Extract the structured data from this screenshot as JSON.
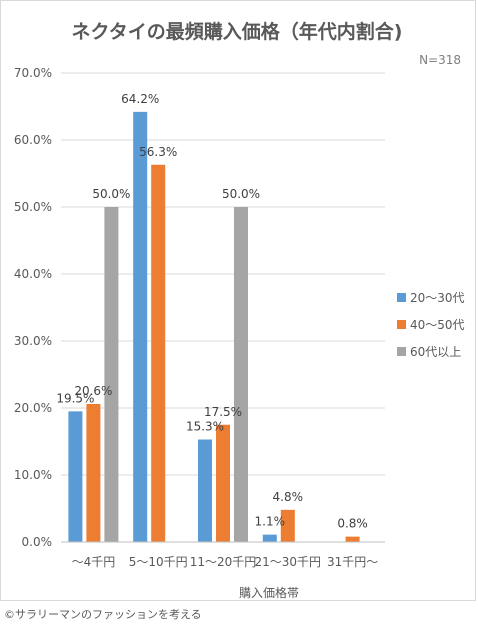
{
  "chart_data": {
    "type": "bar",
    "title": "ネクタイの最頻購入価格（年代内割合)",
    "note": "N=318",
    "xlabel": "購入価格帯",
    "ylabel": "",
    "categories": [
      "～4千円",
      "5～10千円",
      "11～20千円",
      "21～30千円",
      "31千円～"
    ],
    "series": [
      {
        "name": "20～30代",
        "color": "#5b9bd5",
        "values": [
          19.5,
          64.2,
          15.3,
          1.1,
          null
        ]
      },
      {
        "name": "40～50代",
        "color": "#ed7d31",
        "values": [
          20.6,
          56.3,
          17.5,
          4.8,
          0.8
        ]
      },
      {
        "name": "60代以上",
        "color": "#a5a5a5",
        "values": [
          50.0,
          null,
          50.0,
          null,
          null
        ]
      }
    ],
    "ylim": [
      0,
      70
    ],
    "yticks": [
      "0.0%",
      "10.0%",
      "20.0%",
      "30.0%",
      "40.0%",
      "50.0%",
      "60.0%",
      "70.0%"
    ],
    "data_labels": [
      [
        "19.5%",
        "64.2%",
        "15.3%",
        "1.1%",
        ""
      ],
      [
        "20.6%",
        "56.3%",
        "17.5%",
        "4.8%",
        "0.8%"
      ],
      [
        "50.0%",
        "",
        "50.0%",
        "",
        ""
      ]
    ],
    "grid": true,
    "legend_position": "right"
  },
  "footer": "©サラリーマンのファッションを考える"
}
